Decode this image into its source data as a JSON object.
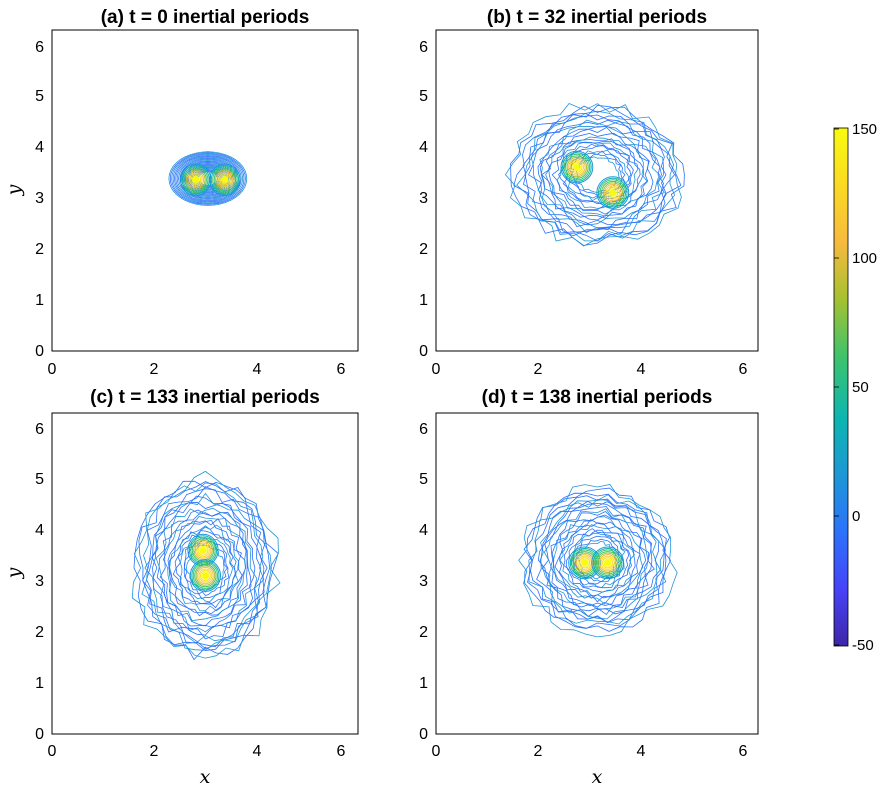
{
  "chart_data": [
    {
      "type": "contour",
      "title": "(a) t = 0 inertial periods",
      "xlabel": "",
      "ylabel": "y",
      "xlim": [
        0,
        6.283
      ],
      "ylim": [
        0,
        6.283
      ],
      "xticks": [
        "0",
        "2",
        "4",
        "6"
      ],
      "yticks": [
        "0",
        "1",
        "2",
        "3",
        "4",
        "5",
        "6"
      ],
      "vortices": [
        {
          "x": 2.95,
          "y": 3.35,
          "peak": 150
        },
        {
          "x": 3.55,
          "y": 3.35,
          "peak": 150
        }
      ],
      "field_extent": {
        "x": [
          2.4,
          4.0
        ],
        "y": [
          2.85,
          3.9
        ]
      }
    },
    {
      "type": "contour",
      "title": "(b) t = 32 inertial periods",
      "xlabel": "",
      "ylabel": "",
      "xlim": [
        0,
        6.283
      ],
      "ylim": [
        0,
        6.283
      ],
      "xticks": [
        "0",
        "2",
        "4",
        "6"
      ],
      "yticks": [
        "0",
        "1",
        "2",
        "3",
        "4",
        "5",
        "6"
      ],
      "vortices": [
        {
          "x": 2.75,
          "y": 3.6,
          "peak": 150
        },
        {
          "x": 3.45,
          "y": 3.1,
          "peak": 150
        }
      ],
      "field_extent": {
        "x": [
          1.5,
          4.8
        ],
        "y": [
          2.1,
          4.8
        ]
      }
    },
    {
      "type": "contour",
      "title": "(c) t = 133 inertial periods",
      "xlabel": "x",
      "ylabel": "y",
      "xlim": [
        0,
        6.283
      ],
      "ylim": [
        0,
        6.283
      ],
      "xticks": [
        "0",
        "2",
        "4",
        "6"
      ],
      "yticks": [
        "0",
        "1",
        "2",
        "3",
        "4",
        "5",
        "6"
      ],
      "vortices": [
        {
          "x": 3.1,
          "y": 3.6,
          "peak": 150
        },
        {
          "x": 3.15,
          "y": 3.1,
          "peak": 150
        }
      ],
      "field_extent": {
        "x": [
          1.7,
          4.6
        ],
        "y": [
          1.5,
          5.0
        ]
      }
    },
    {
      "type": "contour",
      "title": "(d) t = 138 inertial periods",
      "xlabel": "x",
      "ylabel": "",
      "xlim": [
        0,
        6.283
      ],
      "ylim": [
        0,
        6.283
      ],
      "xticks": [
        "0",
        "2",
        "4",
        "6"
      ],
      "yticks": [
        "0",
        "1",
        "2",
        "3",
        "4",
        "5",
        "6"
      ],
      "vortices": [
        {
          "x": 2.9,
          "y": 3.35,
          "peak": 150
        },
        {
          "x": 3.35,
          "y": 3.35,
          "peak": 150
        }
      ],
      "field_extent": {
        "x": [
          1.7,
          4.6
        ],
        "y": [
          2.0,
          4.8
        ]
      }
    }
  ],
  "colorbar": {
    "ticks": [
      "150",
      "100",
      "50",
      "0",
      "-50"
    ],
    "range": [
      -50,
      150
    ],
    "colormap": [
      "#3e26a8",
      "#4743f8",
      "#2c72fc",
      "#1e97d6",
      "#0cb6b0",
      "#3fc36b",
      "#a6c131",
      "#f7ba3e",
      "#fada23",
      "#f9fb0e"
    ]
  }
}
